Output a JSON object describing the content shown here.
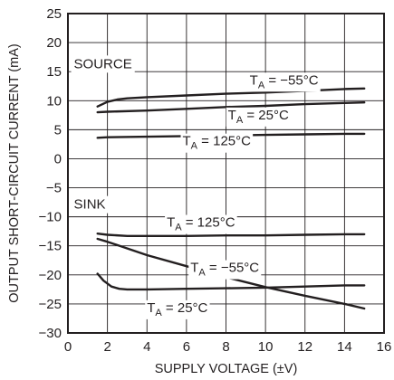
{
  "chart_data": {
    "type": "line",
    "xlabel": "SUPPLY VOLTAGE (±V)",
    "ylabel": "OUTPUT SHORT-CIRCUIT CURRENT (mA)",
    "xlim": [
      0,
      16
    ],
    "ylim": [
      -30,
      25
    ],
    "x_ticks": [
      0,
      2,
      4,
      6,
      8,
      10,
      12,
      14,
      16
    ],
    "y_ticks": [
      25,
      20,
      15,
      10,
      5,
      0,
      -5,
      -10,
      -15,
      -20,
      -25,
      -30
    ],
    "grid": true,
    "group_labels": {
      "source": "SOURCE",
      "sink": "SINK"
    },
    "series": [
      {
        "name": "T_A = −55°C",
        "group": "source",
        "x": [
          1.5,
          2,
          2.5,
          3,
          4,
          6,
          8,
          10,
          12,
          14,
          15
        ],
        "y": [
          9.0,
          9.8,
          10.2,
          10.4,
          10.6,
          10.9,
          11.2,
          11.4,
          11.7,
          12.0,
          12.1
        ]
      },
      {
        "name": "T_A = 25°C",
        "group": "source",
        "x": [
          1.5,
          2,
          4,
          6,
          8,
          10,
          12,
          14,
          15
        ],
        "y": [
          8.0,
          8.1,
          8.3,
          8.6,
          8.9,
          9.1,
          9.4,
          9.6,
          9.7
        ]
      },
      {
        "name": "T_A = 125°C",
        "group": "source",
        "x": [
          1.5,
          2,
          4,
          6,
          8,
          10,
          12,
          14,
          15
        ],
        "y": [
          3.6,
          3.7,
          3.8,
          3.9,
          4.0,
          4.1,
          4.2,
          4.3,
          4.3
        ]
      },
      {
        "name": "T_A = 125°C",
        "group": "sink",
        "x": [
          1.5,
          2,
          3,
          4,
          6,
          8,
          10,
          12,
          14,
          15
        ],
        "y": [
          -12.9,
          -13.1,
          -13.3,
          -13.3,
          -13.3,
          -13.2,
          -13.2,
          -13.1,
          -13.0,
          -13.0
        ]
      },
      {
        "name": "T_A = −55°C",
        "group": "sink",
        "x": [
          1.5,
          2,
          4,
          6,
          8,
          10,
          12,
          14,
          15
        ],
        "y": [
          -13.8,
          -14.3,
          -16.6,
          -18.5,
          -20.4,
          -22.1,
          -23.6,
          -25.0,
          -25.8
        ]
      },
      {
        "name": "T_A = 25°C",
        "group": "sink",
        "x": [
          1.5,
          1.8,
          2.2,
          2.6,
          3,
          4,
          6,
          8,
          10,
          12,
          14,
          15
        ],
        "y": [
          -19.8,
          -21.0,
          -22.0,
          -22.4,
          -22.5,
          -22.5,
          -22.4,
          -22.3,
          -22.2,
          -22.0,
          -21.8,
          -21.8
        ]
      }
    ],
    "annotations": [
      {
        "group": "source",
        "series_index": 0,
        "base": "T",
        "sub": "A",
        "rest": " = −55°C",
        "x": 9.2,
        "y": 12.8
      },
      {
        "group": "source",
        "series_index": 1,
        "base": "T",
        "sub": "A",
        "rest": " = 25°C",
        "x": 8.1,
        "y": 6.8
      },
      {
        "group": "source",
        "series_index": 2,
        "base": "T",
        "sub": "A",
        "rest": " = 125°C",
        "x": 5.8,
        "y": 2.3
      },
      {
        "group": "sink",
        "series_index": 3,
        "base": "T",
        "sub": "A",
        "rest": " = 125°C",
        "x": 5.0,
        "y": -11.7
      },
      {
        "group": "sink",
        "series_index": 4,
        "base": "T",
        "sub": "A",
        "rest": " = −55°C",
        "x": 6.2,
        "y": -19.5
      },
      {
        "group": "sink",
        "series_index": 5,
        "base": "T",
        "sub": "A",
        "rest": " = 25°C",
        "x": 4.0,
        "y": -26.4
      }
    ]
  }
}
